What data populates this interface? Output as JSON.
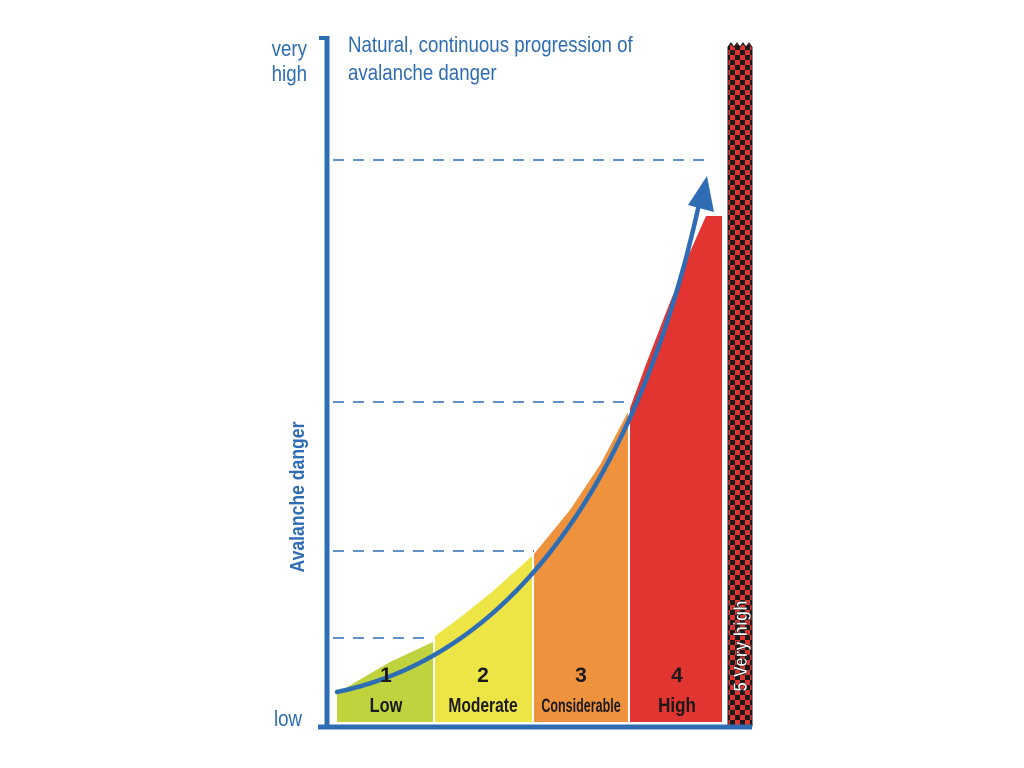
{
  "axis": {
    "top_label_line1": "very",
    "top_label_line2": "high",
    "bottom_label": "low",
    "y_title": "Avalanche danger"
  },
  "title": {
    "line1": "Natural, continuous progression of",
    "line2": "avalanche danger"
  },
  "levels": [
    {
      "number": "1",
      "name": "Low",
      "color": "#BFD33E"
    },
    {
      "number": "2",
      "name": "Moderate",
      "color": "#EDE546"
    },
    {
      "number": "3",
      "name": "Considerable",
      "color": "#EF923E"
    },
    {
      "number": "4",
      "name": "High",
      "color": "#E23431"
    },
    {
      "label": "5 Very high",
      "color": "#E23431",
      "pattern": "checkerboard red/black"
    }
  ],
  "colors": {
    "axis": "#2E6DB4",
    "curve": "#2E6DB4",
    "dash": "#2E6DB4"
  }
}
